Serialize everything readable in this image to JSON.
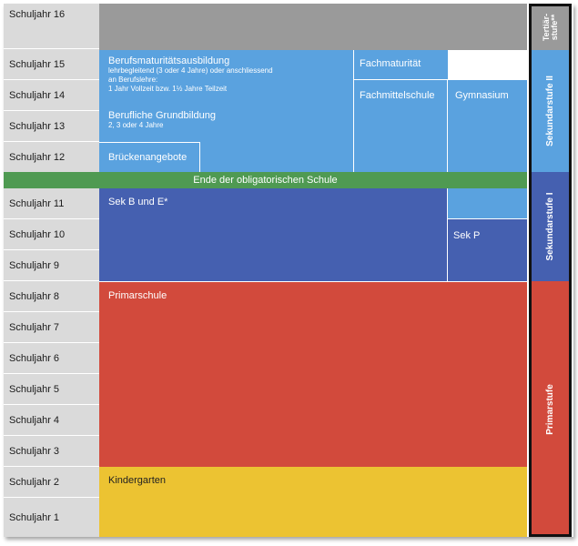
{
  "school_years": [
    "Schuljahr 16",
    "Schuljahr 15",
    "Schuljahr 14",
    "Schuljahr 13",
    "Schuljahr 12",
    "Schuljahr 11",
    "Schuljahr 10",
    "Schuljahr 9",
    "Schuljahr 8",
    "Schuljahr 7",
    "Schuljahr 6",
    "Schuljahr 5",
    "Schuljahr 4",
    "Schuljahr 3",
    "Schuljahr 2",
    "Schuljahr 1"
  ],
  "blocks": {
    "berufsmaturitaet": {
      "title": "Berufsmaturitätsausbildung",
      "line1": "lehrbegleitend (3 oder 4 Jahre) oder anschliessend",
      "line2": "an Berufslehre:",
      "line3": "1 Jahr Vollzeit bzw. 1½ Jahre Teilzeit"
    },
    "grundbildung": {
      "title": "Berufliche Grundbildung",
      "subtitle": "2, 3 oder 4 Jahre"
    },
    "fachmaturitaet": "Fachmaturität",
    "fachmittelschule": "Fachmittelschule",
    "gymnasium": "Gymnasium",
    "brueckenangebote": "Brückenangebote",
    "obligatorisch_ende": "Ende der obligatorischen Schule",
    "sek_b_e": "Sek B und E*",
    "sek_p": "Sek P",
    "primarschule": "Primarschule",
    "kindergarten": "Kindergarten"
  },
  "stages": {
    "tertiaer_line1": "Tertiär-",
    "tertiaer_line2": "stufe**",
    "sekundar2": "Sekundarstufe II",
    "sekundar1": "Sekundarstufe I",
    "primar": "Primarstufe"
  },
  "colors": {
    "year_bg": "#dadada",
    "tertiary_gray": "#9a9a9a",
    "sek2_blue": "#5aa2df",
    "sek1_blue": "#4560b0",
    "green_band": "#4f9a52",
    "primar_red": "#d24a3c",
    "kindergarten_yellow": "#ecc332"
  }
}
